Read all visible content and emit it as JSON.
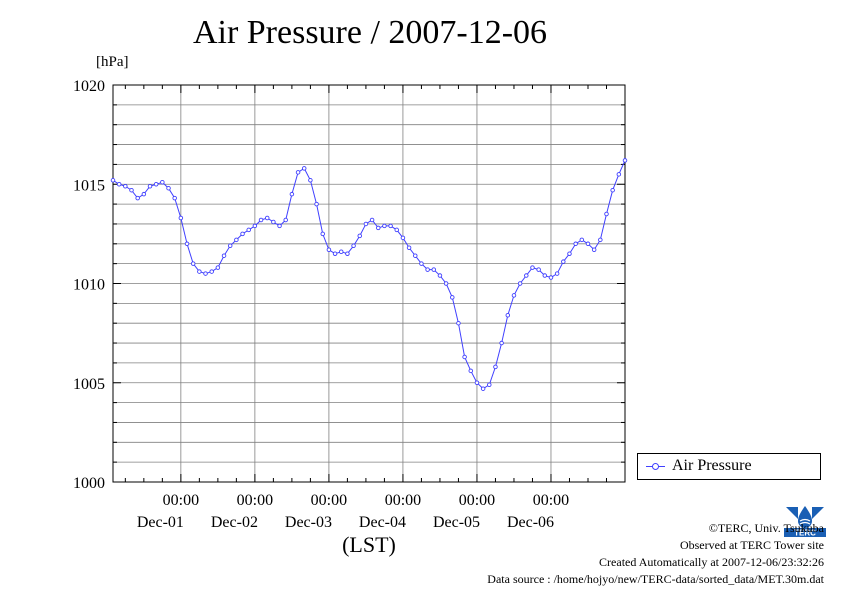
{
  "colors": {
    "series": "#4040ff",
    "grid": "#808080",
    "axis": "#000000",
    "background": "#ffffff"
  },
  "chart_data": {
    "type": "line",
    "title": "Air Pressure / 2007-12-06",
    "unit_label": "[hPa]",
    "xlabel": "(LST)",
    "ylabel": "",
    "ylim": [
      1000,
      1020
    ],
    "yticks": [
      {
        "value": 1000,
        "label": "1000"
      },
      {
        "value": 1005,
        "label": "1005"
      },
      {
        "value": 1010,
        "label": "1010"
      },
      {
        "value": 1015,
        "label": "1015"
      },
      {
        "value": 1020,
        "label": "1020"
      }
    ],
    "xlim": [
      "2007-11-30 02:00",
      "2007-12-07 00:00"
    ],
    "xticks": [
      {
        "time": "2007-12-01 00:00",
        "label": "00:00",
        "date": "Dec-01"
      },
      {
        "time": "2007-12-02 00:00",
        "label": "00:00",
        "date": "Dec-02"
      },
      {
        "time": "2007-12-03 00:00",
        "label": "00:00",
        "date": "Dec-03"
      },
      {
        "time": "2007-12-04 00:00",
        "label": "00:00",
        "date": "Dec-04"
      },
      {
        "time": "2007-12-05 00:00",
        "label": "00:00",
        "date": "Dec-05"
      },
      {
        "time": "2007-12-06 00:00",
        "label": "00:00",
        "date": "Dec-06"
      }
    ],
    "minor_x_interval_hours": 6,
    "minor_y_interval": 1,
    "grid": true,
    "legend": "right",
    "series": [
      {
        "name": "Air Pressure",
        "marker": "circle",
        "points": [
          [
            "2007-11-30 02:00",
            1015.2
          ],
          [
            "2007-11-30 04:00",
            1015.0
          ],
          [
            "2007-11-30 06:00",
            1014.9
          ],
          [
            "2007-11-30 08:00",
            1014.7
          ],
          [
            "2007-11-30 10:00",
            1014.3
          ],
          [
            "2007-11-30 12:00",
            1014.5
          ],
          [
            "2007-11-30 14:00",
            1014.9
          ],
          [
            "2007-11-30 16:00",
            1015.0
          ],
          [
            "2007-11-30 18:00",
            1015.1
          ],
          [
            "2007-11-30 20:00",
            1014.8
          ],
          [
            "2007-11-30 22:00",
            1014.3
          ],
          [
            "2007-12-01 00:00",
            1013.3
          ],
          [
            "2007-12-01 02:00",
            1012.0
          ],
          [
            "2007-12-01 04:00",
            1011.0
          ],
          [
            "2007-12-01 06:00",
            1010.6
          ],
          [
            "2007-12-01 08:00",
            1010.5
          ],
          [
            "2007-12-01 10:00",
            1010.6
          ],
          [
            "2007-12-01 12:00",
            1010.8
          ],
          [
            "2007-12-01 14:00",
            1011.4
          ],
          [
            "2007-12-01 16:00",
            1011.9
          ],
          [
            "2007-12-01 18:00",
            1012.2
          ],
          [
            "2007-12-01 20:00",
            1012.5
          ],
          [
            "2007-12-01 22:00",
            1012.7
          ],
          [
            "2007-12-02 00:00",
            1012.9
          ],
          [
            "2007-12-02 02:00",
            1013.2
          ],
          [
            "2007-12-02 04:00",
            1013.3
          ],
          [
            "2007-12-02 06:00",
            1013.1
          ],
          [
            "2007-12-02 08:00",
            1012.9
          ],
          [
            "2007-12-02 10:00",
            1013.2
          ],
          [
            "2007-12-02 12:00",
            1014.5
          ],
          [
            "2007-12-02 14:00",
            1015.6
          ],
          [
            "2007-12-02 16:00",
            1015.8
          ],
          [
            "2007-12-02 18:00",
            1015.2
          ],
          [
            "2007-12-02 20:00",
            1014.0
          ],
          [
            "2007-12-02 22:00",
            1012.5
          ],
          [
            "2007-12-03 00:00",
            1011.7
          ],
          [
            "2007-12-03 02:00",
            1011.5
          ],
          [
            "2007-12-03 04:00",
            1011.6
          ],
          [
            "2007-12-03 06:00",
            1011.5
          ],
          [
            "2007-12-03 08:00",
            1011.9
          ],
          [
            "2007-12-03 10:00",
            1012.4
          ],
          [
            "2007-12-03 12:00",
            1013.0
          ],
          [
            "2007-12-03 14:00",
            1013.2
          ],
          [
            "2007-12-03 16:00",
            1012.8
          ],
          [
            "2007-12-03 18:00",
            1012.9
          ],
          [
            "2007-12-03 20:00",
            1012.9
          ],
          [
            "2007-12-03 22:00",
            1012.7
          ],
          [
            "2007-12-04 00:00",
            1012.3
          ],
          [
            "2007-12-04 02:00",
            1011.8
          ],
          [
            "2007-12-04 04:00",
            1011.4
          ],
          [
            "2007-12-04 06:00",
            1011.0
          ],
          [
            "2007-12-04 08:00",
            1010.7
          ],
          [
            "2007-12-04 10:00",
            1010.7
          ],
          [
            "2007-12-04 12:00",
            1010.4
          ],
          [
            "2007-12-04 14:00",
            1010.0
          ],
          [
            "2007-12-04 16:00",
            1009.3
          ],
          [
            "2007-12-04 18:00",
            1008.0
          ],
          [
            "2007-12-04 20:00",
            1006.3
          ],
          [
            "2007-12-04 22:00",
            1005.6
          ],
          [
            "2007-12-05 00:00",
            1005.0
          ],
          [
            "2007-12-05 02:00",
            1004.7
          ],
          [
            "2007-12-05 04:00",
            1004.9
          ],
          [
            "2007-12-05 06:00",
            1005.8
          ],
          [
            "2007-12-05 08:00",
            1007.0
          ],
          [
            "2007-12-05 10:00",
            1008.4
          ],
          [
            "2007-12-05 12:00",
            1009.4
          ],
          [
            "2007-12-05 14:00",
            1010.0
          ],
          [
            "2007-12-05 16:00",
            1010.4
          ],
          [
            "2007-12-05 18:00",
            1010.8
          ],
          [
            "2007-12-05 20:00",
            1010.7
          ],
          [
            "2007-12-05 22:00",
            1010.4
          ],
          [
            "2007-12-06 00:00",
            1010.3
          ],
          [
            "2007-12-06 02:00",
            1010.5
          ],
          [
            "2007-12-06 04:00",
            1011.1
          ],
          [
            "2007-12-06 06:00",
            1011.5
          ],
          [
            "2007-12-06 08:00",
            1012.0
          ],
          [
            "2007-12-06 10:00",
            1012.2
          ],
          [
            "2007-12-06 12:00",
            1012.0
          ],
          [
            "2007-12-06 14:00",
            1011.7
          ],
          [
            "2007-12-06 16:00",
            1012.2
          ],
          [
            "2007-12-06 18:00",
            1013.5
          ],
          [
            "2007-12-06 20:00",
            1014.7
          ],
          [
            "2007-12-06 22:00",
            1015.5
          ],
          [
            "2007-12-07 00:00",
            1016.2
          ]
        ]
      }
    ]
  },
  "legend": {
    "label": "Air Pressure"
  },
  "credits": [
    "©TERC, Univ. Tsukuba",
    "Observed at TERC Tower site",
    "Created Automatically at 2007-12-06/23:32:26",
    "Data source : /home/hojyo/new/TERC-data/sorted_data/MET.30m.dat"
  ],
  "logo_text": "TERC"
}
